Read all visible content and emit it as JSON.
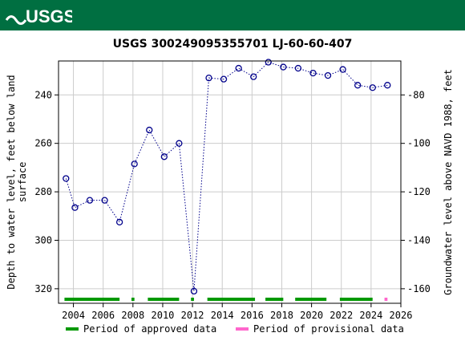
{
  "header": {
    "logo_text": "USGS",
    "background": "#006f41"
  },
  "chart_data": {
    "type": "scatter",
    "title": "USGS 300249095355701 LJ-60-60-407",
    "ylabel_left": "Depth to water level, feet below land surface",
    "ylabel_right": "Groundwater level above NAVD 1988, feet",
    "x_ticks": [
      "2004",
      "2006",
      "2008",
      "2010",
      "2012",
      "2014",
      "2016",
      "2018",
      "2020",
      "2022",
      "2024",
      "2026"
    ],
    "y_left_ticks": [
      240,
      260,
      280,
      300,
      320
    ],
    "y_right_ticks": [
      -80,
      -100,
      -120,
      -140,
      -160
    ],
    "xlim": [
      2003.0,
      2026.0
    ],
    "ylim_left": [
      226.0,
      326.0
    ],
    "ylim_right": [
      -66.0,
      -166.0
    ],
    "grid": true,
    "series": [
      {
        "marker_color": "#00008b",
        "points": [
          [
            2003.5,
            274.5
          ],
          [
            2004.1,
            286.5
          ],
          [
            2005.1,
            283.5
          ],
          [
            2006.1,
            283.5
          ],
          [
            2007.1,
            292.5
          ],
          [
            2008.1,
            268.5
          ],
          [
            2009.1,
            254.5
          ],
          [
            2010.1,
            265.5
          ],
          [
            2011.1,
            260.0
          ],
          [
            2012.1,
            321.0
          ],
          [
            2013.1,
            233.0
          ],
          [
            2014.1,
            233.5
          ],
          [
            2015.1,
            229.0
          ],
          [
            2016.1,
            232.5
          ],
          [
            2017.1,
            226.5
          ],
          [
            2018.1,
            228.5
          ],
          [
            2019.1,
            229.0
          ],
          [
            2020.1,
            231.0
          ],
          [
            2021.1,
            232.0
          ],
          [
            2022.1,
            229.5
          ],
          [
            2023.1,
            236.0
          ],
          [
            2024.1,
            237.0
          ],
          [
            2025.1,
            236.0
          ]
        ]
      }
    ],
    "approved_periods": [
      [
        2003.4,
        2007.1
      ],
      [
        2007.9,
        2008.1
      ],
      [
        2009.0,
        2011.1
      ],
      [
        2011.9,
        2012.1
      ],
      [
        2013.0,
        2016.2
      ],
      [
        2016.9,
        2018.1
      ],
      [
        2018.9,
        2021.0
      ],
      [
        2021.9,
        2024.1
      ]
    ],
    "provisional_periods": [
      [
        2024.9,
        2025.1
      ]
    ],
    "approved_color": "#009900",
    "provisional_color": "#ff66cc",
    "legend": [
      {
        "label": "Period of approved data",
        "color": "#009900"
      },
      {
        "label": "Period of provisional data",
        "color": "#ff66cc"
      }
    ]
  }
}
